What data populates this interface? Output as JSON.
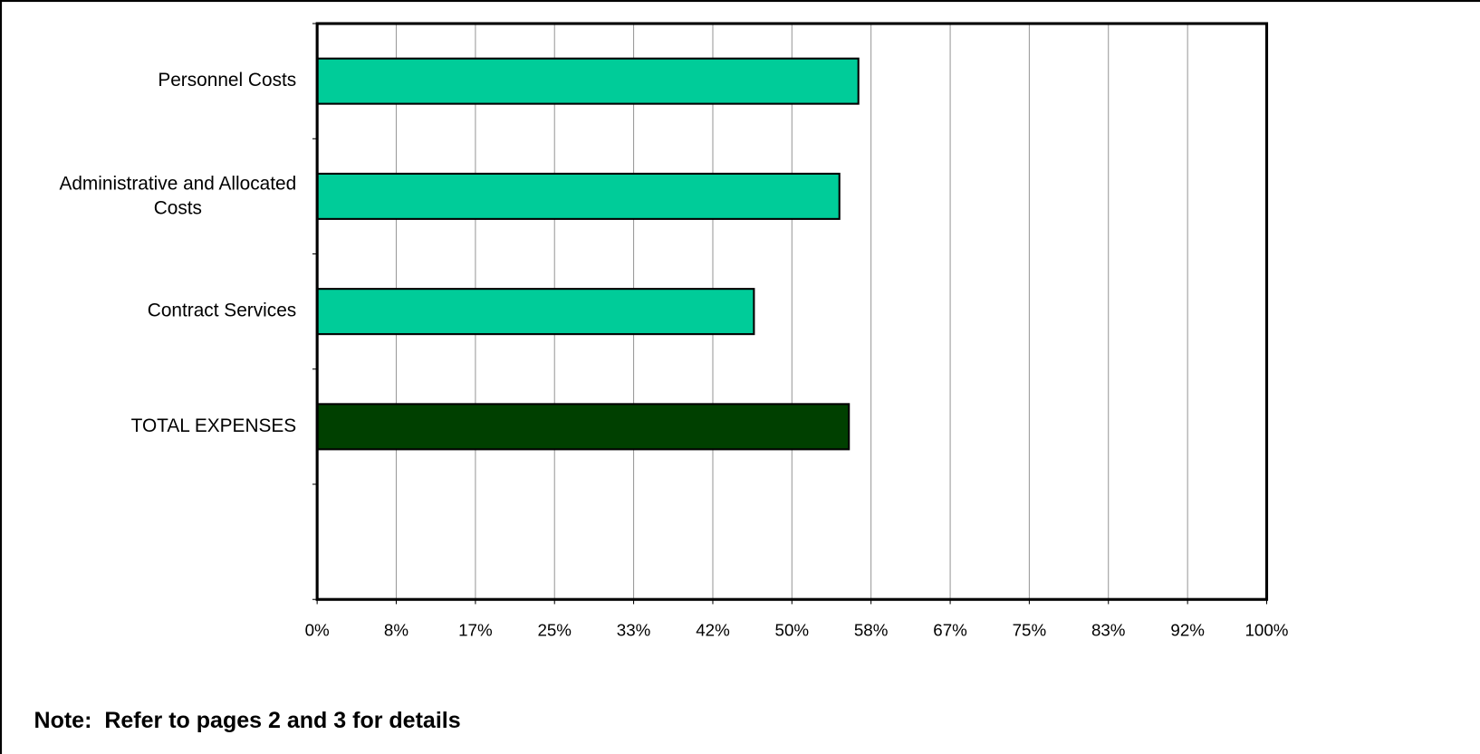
{
  "chart_data": {
    "type": "bar",
    "orientation": "horizontal",
    "categories": [
      "Personnel Costs",
      "Administrative and Allocated Costs",
      "Contract Services",
      "TOTAL EXPENSES",
      null
    ],
    "values": [
      57,
      55,
      46,
      56,
      null
    ],
    "colors": [
      "#00cc99",
      "#00cc99",
      "#00cc99",
      "#004000",
      null
    ],
    "xlim": [
      0,
      100
    ],
    "xticks": [
      {
        "value": 0,
        "label": "0%"
      },
      {
        "value": 8.33,
        "label": "8%"
      },
      {
        "value": 16.67,
        "label": "17%"
      },
      {
        "value": 25,
        "label": "25%"
      },
      {
        "value": 33.33,
        "label": "33%"
      },
      {
        "value": 41.67,
        "label": "42%"
      },
      {
        "value": 50,
        "label": "50%"
      },
      {
        "value": 58.33,
        "label": "58%"
      },
      {
        "value": 66.67,
        "label": "67%"
      },
      {
        "value": 75,
        "label": "75%"
      },
      {
        "value": 83.33,
        "label": "83%"
      },
      {
        "value": 91.67,
        "label": "92%"
      },
      {
        "value": 100,
        "label": "100%"
      }
    ],
    "grid": true,
    "note": "Note:  Refer to pages 2 and 3 for details"
  }
}
